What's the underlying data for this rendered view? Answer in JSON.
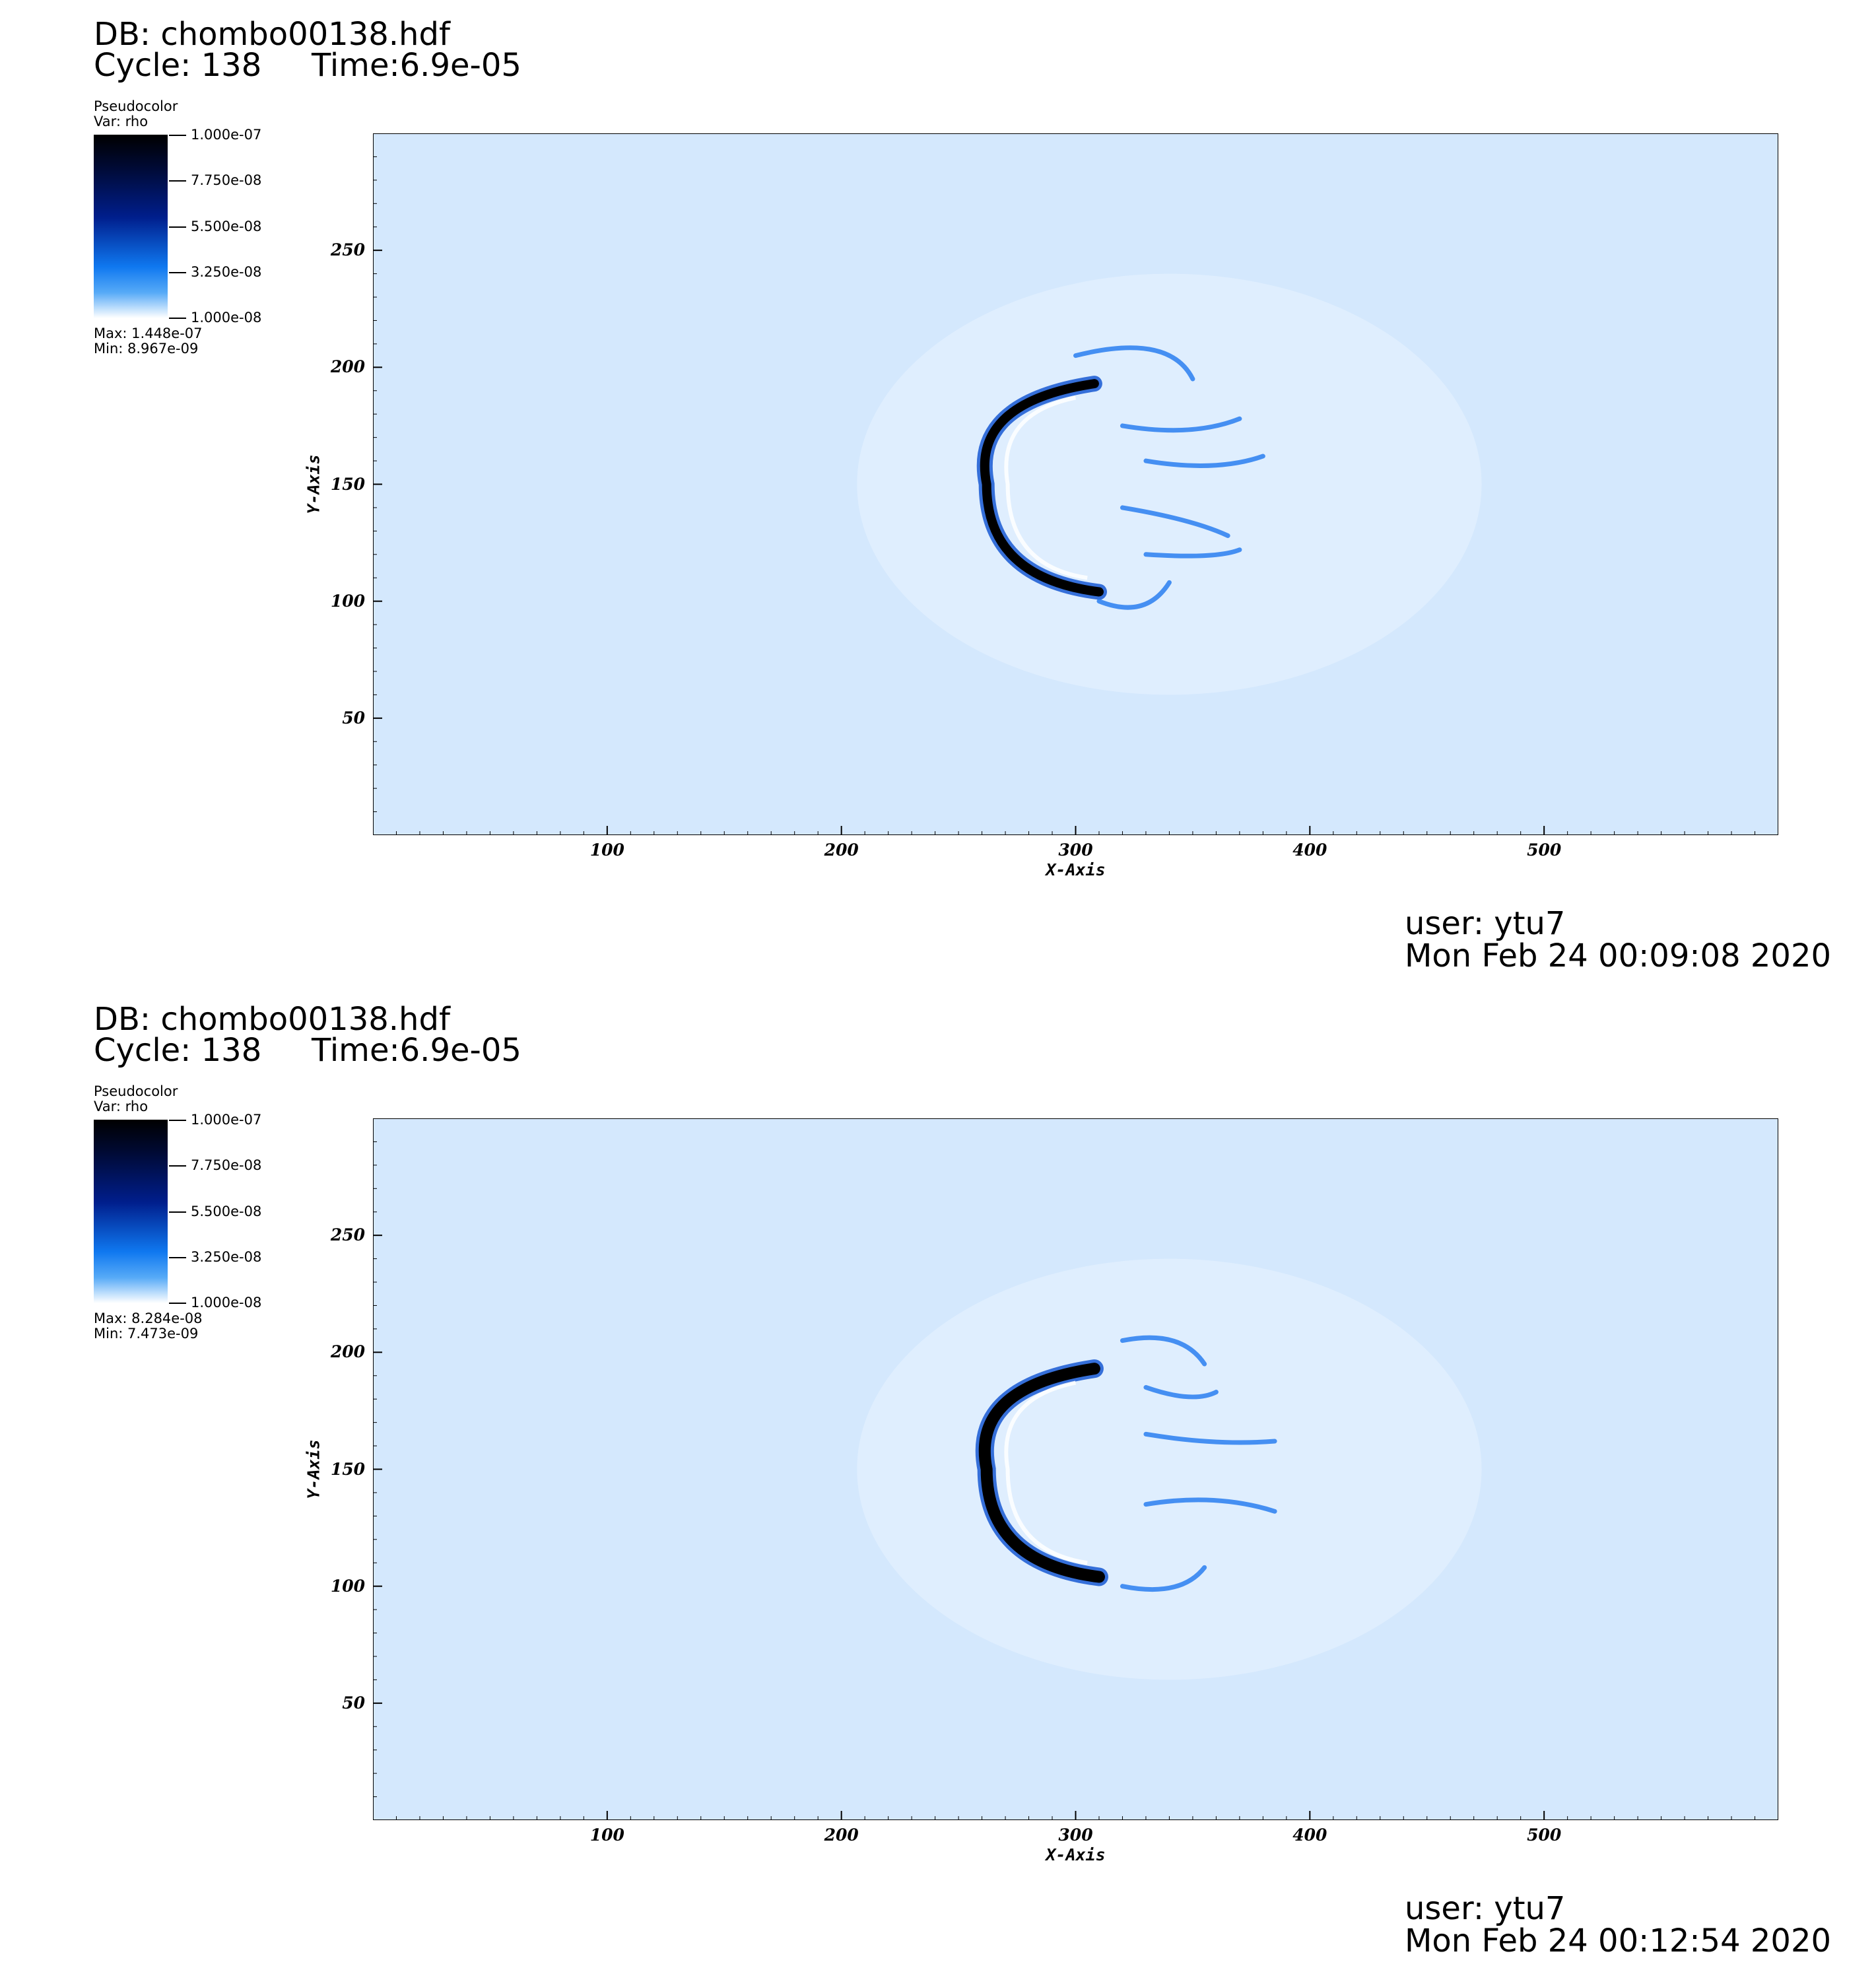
{
  "panels": [
    {
      "db": "DB: chombo00138.hdf",
      "cycle": "Cycle: 138",
      "time": "Time:6.9e-05",
      "legend": {
        "plot_type": "Pseudocolor",
        "var": "Var: rho",
        "ticks": [
          "1.000e-07",
          "7.750e-08",
          "5.500e-08",
          "3.250e-08",
          "1.000e-08"
        ],
        "max": "Max:  1.448e-07",
        "min": "Min:  8.967e-09"
      },
      "user": "user: ytu7",
      "date": "Mon Feb 24 00:09:08 2020"
    },
    {
      "db": "DB: chombo00138.hdf",
      "cycle": "Cycle: 138",
      "time": "Time:6.9e-05",
      "legend": {
        "plot_type": "Pseudocolor",
        "var": "Var: rho",
        "ticks": [
          "1.000e-07",
          "7.750e-08",
          "5.500e-08",
          "3.250e-08",
          "1.000e-08"
        ],
        "max": "Max:  8.284e-08",
        "min": "Min:  7.473e-09"
      },
      "user": "user: ytu7",
      "date": "Mon Feb 24 00:12:54 2020"
    }
  ],
  "chart_data": [
    {
      "type": "heatmap",
      "title": "",
      "xlabel": "X-Axis",
      "ylabel": "Y-Axis",
      "xlim": [
        0,
        600
      ],
      "ylim": [
        0,
        300
      ],
      "xticks": [
        100,
        200,
        300,
        400,
        500
      ],
      "yticks": [
        50,
        100,
        150,
        200,
        250
      ],
      "variable": "rho",
      "colorbar_range": [
        1e-08,
        1e-07
      ],
      "feature": "bow-shaped dense shell centered near x=300, y=150"
    },
    {
      "type": "heatmap",
      "title": "",
      "xlabel": "X-Axis",
      "ylabel": "Y-Axis",
      "xlim": [
        0,
        600
      ],
      "ylim": [
        0,
        300
      ],
      "xticks": [
        100,
        200,
        300,
        400,
        500
      ],
      "yticks": [
        50,
        100,
        150,
        200,
        250
      ],
      "variable": "rho",
      "colorbar_range": [
        1e-08,
        1e-07
      ],
      "feature": "bow-shaped dense shell centered near x=300, y=150"
    }
  ],
  "colors": {
    "background_field": "#d4e8fd",
    "shell_dark": "#000000",
    "shell_blue": "#0a4fd0"
  }
}
